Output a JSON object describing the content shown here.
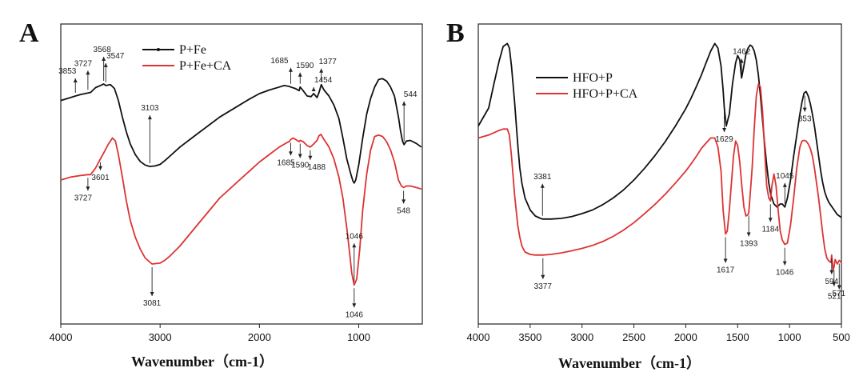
{
  "chart_data": [
    {
      "type": "line",
      "panel": "A",
      "xlabel": "Wavenumber（cm-1）",
      "xlim": [
        4000,
        360
      ],
      "xticks": [
        4000,
        3000,
        2000,
        1000
      ],
      "series": [
        {
          "name": "P+Fe",
          "color": "#111111",
          "x": [
            4000,
            3900,
            3853,
            3800,
            3727,
            3700,
            3650,
            3601,
            3568,
            3547,
            3500,
            3460,
            3420,
            3380,
            3340,
            3300,
            3250,
            3200,
            3150,
            3103,
            3050,
            3000,
            2950,
            2900,
            2800,
            2700,
            2600,
            2500,
            2400,
            2300,
            2200,
            2100,
            2000,
            1900,
            1800,
            1750,
            1700,
            1685,
            1640,
            1600,
            1590,
            1560,
            1520,
            1480,
            1454,
            1420,
            1400,
            1377,
            1350,
            1300,
            1250,
            1200,
            1160,
            1120,
            1080,
            1060,
            1046,
            1030,
            1000,
            960,
            920,
            880,
            840,
            800,
            760,
            720,
            680,
            640,
            600,
            580,
            560,
            544,
            520,
            480,
            420,
            370
          ],
          "y": [
            0.745,
            0.755,
            0.76,
            0.765,
            0.77,
            0.772,
            0.788,
            0.795,
            0.8,
            0.795,
            0.798,
            0.785,
            0.745,
            0.69,
            0.64,
            0.6,
            0.565,
            0.542,
            0.53,
            0.525,
            0.527,
            0.532,
            0.545,
            0.56,
            0.59,
            0.615,
            0.64,
            0.665,
            0.69,
            0.71,
            0.73,
            0.75,
            0.768,
            0.78,
            0.79,
            0.795,
            0.792,
            0.79,
            0.785,
            0.778,
            0.79,
            0.778,
            0.76,
            0.758,
            0.768,
            0.755,
            0.772,
            0.798,
            0.78,
            0.76,
            0.73,
            0.685,
            0.62,
            0.55,
            0.5,
            0.478,
            0.47,
            0.48,
            0.53,
            0.62,
            0.7,
            0.752,
            0.79,
            0.815,
            0.818,
            0.81,
            0.79,
            0.76,
            0.69,
            0.645,
            0.61,
            0.598,
            0.61,
            0.612,
            0.602,
            0.59
          ]
        },
        {
          "name": "P+Fe+CA",
          "color": "#dd3333",
          "x": [
            4000,
            3900,
            3800,
            3727,
            3700,
            3650,
            3601,
            3560,
            3520,
            3480,
            3450,
            3420,
            3380,
            3340,
            3300,
            3250,
            3200,
            3150,
            3081,
            3000,
            2950,
            2900,
            2800,
            2700,
            2600,
            2500,
            2400,
            2300,
            2200,
            2100,
            2000,
            1900,
            1800,
            1720,
            1700,
            1685,
            1660,
            1620,
            1600,
            1590,
            1560,
            1520,
            1488,
            1460,
            1420,
            1400,
            1380,
            1350,
            1300,
            1250,
            1200,
            1160,
            1120,
            1090,
            1070,
            1046,
            1020,
            990,
            960,
            920,
            880,
            840,
            800,
            760,
            720,
            680,
            640,
            600,
            570,
            548,
            520,
            480,
            420,
            370
          ],
          "y": [
            0.48,
            0.49,
            0.495,
            0.498,
            0.498,
            0.52,
            0.55,
            0.575,
            0.6,
            0.62,
            0.61,
            0.565,
            0.49,
            0.41,
            0.345,
            0.29,
            0.25,
            0.22,
            0.2,
            0.203,
            0.213,
            0.227,
            0.26,
            0.3,
            0.34,
            0.38,
            0.42,
            0.45,
            0.48,
            0.51,
            0.54,
            0.565,
            0.59,
            0.605,
            0.608,
            0.615,
            0.62,
            0.612,
            0.608,
            0.612,
            0.608,
            0.595,
            0.59,
            0.598,
            0.612,
            0.628,
            0.632,
            0.615,
            0.59,
            0.55,
            0.49,
            0.42,
            0.32,
            0.23,
            0.17,
            0.13,
            0.15,
            0.25,
            0.38,
            0.5,
            0.58,
            0.625,
            0.63,
            0.625,
            0.608,
            0.58,
            0.54,
            0.48,
            0.46,
            0.455,
            0.46,
            0.46,
            0.455,
            0.45
          ]
        }
      ],
      "annotations": [
        {
          "label": "3853",
          "x": 3853,
          "series": 0,
          "dir": "up"
        },
        {
          "label": "3727",
          "x": 3727,
          "series": 0,
          "dir": "up"
        },
        {
          "label": "3568",
          "x": 3568,
          "series": 0,
          "dir": "up"
        },
        {
          "label": "3547",
          "x": 3547,
          "series": 0,
          "dir": "up"
        },
        {
          "label": "1685",
          "x": 1685,
          "series": 0,
          "dir": "up"
        },
        {
          "label": "1590",
          "x": 1590,
          "series": 0,
          "dir": "up"
        },
        {
          "label": "1454",
          "x": 1454,
          "series": 0,
          "dir": "up"
        },
        {
          "label": "1377",
          "x": 1377,
          "series": 0,
          "dir": "up"
        },
        {
          "label": "544",
          "x": 544,
          "series": 0,
          "dir": "up"
        },
        {
          "label": "3103",
          "x": 3103,
          "series": 0,
          "dir": "up"
        },
        {
          "label": "3727",
          "x": 3727,
          "series": 1,
          "dir": "down"
        },
        {
          "label": "3601",
          "x": 3601,
          "series": 1,
          "dir": "down"
        },
        {
          "label": "1685",
          "x": 1685,
          "series": 1,
          "dir": "down"
        },
        {
          "label": "1590",
          "x": 1590,
          "series": 1,
          "dir": "down"
        },
        {
          "label": "1488",
          "x": 1488,
          "series": 1,
          "dir": "down"
        },
        {
          "label": "1046",
          "x": 1046,
          "series": 1,
          "dir": "up"
        },
        {
          "label": "548",
          "x": 548,
          "series": 1,
          "dir": "down"
        },
        {
          "label": "3081",
          "x": 3081,
          "series": 1,
          "dir": "down"
        },
        {
          "label": "1046",
          "x": 1046,
          "series": 1,
          "dir": "down"
        }
      ]
    },
    {
      "type": "line",
      "panel": "B",
      "xlabel": "Wavenumber（cm-1）",
      "xlim": [
        4000,
        500
      ],
      "xticks": [
        4000,
        3500,
        3000,
        2500,
        2000,
        1500,
        1000,
        500
      ],
      "series": [
        {
          "name": "HFO+P",
          "color": "#111111",
          "x": [
            4000,
            3900,
            3850,
            3800,
            3760,
            3720,
            3700,
            3680,
            3650,
            3620,
            3600,
            3580,
            3550,
            3500,
            3450,
            3400,
            3381,
            3300,
            3200,
            3100,
            3000,
            2900,
            2800,
            2700,
            2600,
            2500,
            2400,
            2300,
            2200,
            2100,
            2000,
            1950,
            1900,
            1850,
            1800,
            1760,
            1720,
            1690,
            1660,
            1640,
            1629,
            1610,
            1580,
            1550,
            1520,
            1500,
            1480,
            1462,
            1440,
            1420,
            1400,
            1380,
            1360,
            1340,
            1320,
            1300,
            1280,
            1260,
            1240,
            1220,
            1200,
            1180,
            1150,
            1120,
            1090,
            1070,
            1045,
            1020,
            990,
            960,
            930,
            900,
            880,
            860,
            840,
            820,
            800,
            780,
            760,
            740,
            720,
            700,
            680,
            660,
            640,
            620,
            600,
            580,
            560,
            540,
            520,
            500
          ],
          "y": [
            0.66,
            0.72,
            0.8,
            0.875,
            0.925,
            0.935,
            0.92,
            0.86,
            0.74,
            0.6,
            0.52,
            0.47,
            0.42,
            0.38,
            0.36,
            0.352,
            0.35,
            0.35,
            0.352,
            0.358,
            0.368,
            0.38,
            0.398,
            0.42,
            0.447,
            0.48,
            0.518,
            0.56,
            0.607,
            0.66,
            0.718,
            0.752,
            0.79,
            0.83,
            0.875,
            0.91,
            0.935,
            0.92,
            0.86,
            0.78,
            0.72,
            0.66,
            0.7,
            0.8,
            0.87,
            0.895,
            0.88,
            0.82,
            0.86,
            0.9,
            0.92,
            0.93,
            0.925,
            0.91,
            0.88,
            0.83,
            0.76,
            0.68,
            0.6,
            0.53,
            0.47,
            0.43,
            0.4,
            0.39,
            0.4,
            0.4,
            0.39,
            0.42,
            0.48,
            0.56,
            0.63,
            0.7,
            0.74,
            0.77,
            0.775,
            0.76,
            0.735,
            0.7,
            0.66,
            0.61,
            0.56,
            0.51,
            0.47,
            0.44,
            0.42,
            0.405,
            0.395,
            0.385,
            0.375,
            0.365,
            0.36,
            0.355
          ]
        },
        {
          "name": "HFO+P+CA",
          "color": "#dd3333",
          "x": [
            4000,
            3900,
            3800,
            3760,
            3720,
            3700,
            3680,
            3650,
            3620,
            3600,
            3580,
            3550,
            3500,
            3450,
            3400,
            3377,
            3300,
            3200,
            3100,
            3000,
            2900,
            2800,
            2700,
            2600,
            2500,
            2400,
            2300,
            2200,
            2100,
            2000,
            1950,
            1900,
            1850,
            1800,
            1760,
            1720,
            1690,
            1660,
            1640,
            1617,
            1600,
            1580,
            1560,
            1540,
            1520,
            1500,
            1480,
            1460,
            1440,
            1420,
            1400,
            1393,
            1380,
            1360,
            1340,
            1320,
            1300,
            1280,
            1260,
            1240,
            1220,
            1200,
            1184,
            1170,
            1150,
            1130,
            1110,
            1090,
            1070,
            1046,
            1020,
            990,
            960,
            930,
            900,
            880,
            860,
            840,
            820,
            800,
            780,
            760,
            740,
            720,
            700,
            680,
            660,
            640,
            620,
            600,
            594,
            580,
            571,
            560,
            540,
            521,
            500
          ],
          "y": [
            0.62,
            0.63,
            0.645,
            0.65,
            0.65,
            0.63,
            0.56,
            0.43,
            0.33,
            0.29,
            0.26,
            0.24,
            0.232,
            0.23,
            0.23,
            0.23,
            0.232,
            0.237,
            0.244,
            0.252,
            0.262,
            0.275,
            0.292,
            0.313,
            0.338,
            0.367,
            0.398,
            0.432,
            0.47,
            0.51,
            0.533,
            0.558,
            0.585,
            0.605,
            0.62,
            0.62,
            0.59,
            0.51,
            0.38,
            0.3,
            0.31,
            0.38,
            0.47,
            0.56,
            0.61,
            0.595,
            0.54,
            0.46,
            0.39,
            0.36,
            0.365,
            0.372,
            0.43,
            0.52,
            0.65,
            0.76,
            0.8,
            0.79,
            0.71,
            0.58,
            0.46,
            0.42,
            0.41,
            0.46,
            0.5,
            0.46,
            0.38,
            0.31,
            0.28,
            0.265,
            0.27,
            0.33,
            0.42,
            0.52,
            0.59,
            0.61,
            0.612,
            0.61,
            0.6,
            0.585,
            0.56,
            0.52,
            0.47,
            0.42,
            0.36,
            0.3,
            0.25,
            0.22,
            0.21,
            0.205,
            0.23,
            0.18,
            0.19,
            0.215,
            0.2,
            0.212,
            0.205
          ]
        }
      ],
      "annotations": [
        {
          "label": "1462",
          "x": 1462,
          "series": 0,
          "dir": "up"
        },
        {
          "label": "1629",
          "x": 1629,
          "series": 0,
          "dir": "down"
        },
        {
          "label": "3381",
          "x": 3381,
          "series": 0,
          "dir": "up"
        },
        {
          "label": "1045",
          "x": 1045,
          "series": 0,
          "dir": "up"
        },
        {
          "label": "853",
          "x": 853,
          "series": 0,
          "dir": "down"
        },
        {
          "label": "3377",
          "x": 3377,
          "series": 1,
          "dir": "down"
        },
        {
          "label": "1617",
          "x": 1617,
          "series": 1,
          "dir": "down"
        },
        {
          "label": "1393",
          "x": 1393,
          "series": 1,
          "dir": "down"
        },
        {
          "label": "1184",
          "x": 1184,
          "series": 1,
          "dir": "down"
        },
        {
          "label": "1046",
          "x": 1046,
          "series": 1,
          "dir": "down"
        },
        {
          "label": "594",
          "x": 594,
          "series": 1,
          "dir": "down"
        },
        {
          "label": "571",
          "x": 571,
          "series": 1,
          "dir": "down"
        },
        {
          "label": "521",
          "x": 521,
          "series": 1,
          "dir": "down"
        }
      ]
    }
  ]
}
